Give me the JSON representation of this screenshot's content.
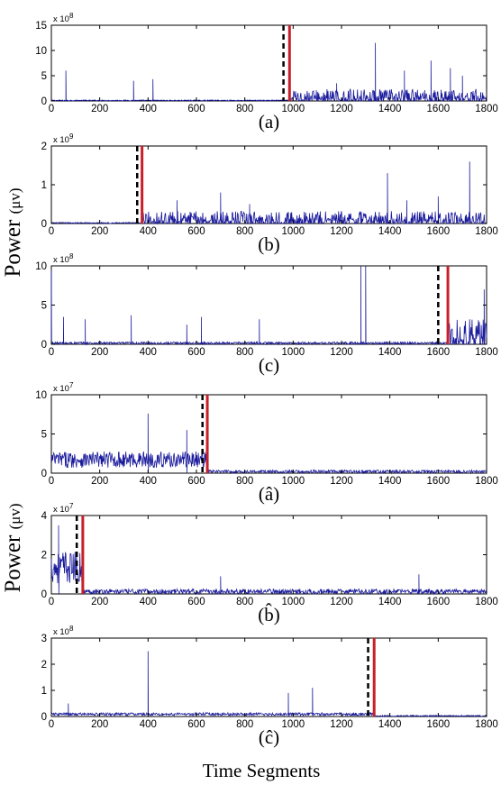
{
  "y_axis_label": "Power",
  "y_axis_unit": "(μv)",
  "x_axis_label": "Time Segments",
  "colors": {
    "signal": "#1a1a9c",
    "dashed": "#000000",
    "red": "#c8202a",
    "axis": "#000000",
    "background": "#ffffff"
  },
  "chart_data": [
    {
      "type": "line",
      "caption": "(a)",
      "exponent_label": "x 10",
      "exponent": "8",
      "xlim": [
        0,
        1800
      ],
      "ylim": [
        0,
        15
      ],
      "x_ticks": [
        0,
        200,
        400,
        600,
        800,
        1000,
        1200,
        1400,
        1600,
        1800
      ],
      "y_ticks": [
        0,
        5,
        10,
        15
      ],
      "dashed_line_x": 960,
      "red_line_x": 985,
      "baseline_level": 0.2,
      "noise_after_red": 1.5,
      "spikes": [
        [
          60,
          6
        ],
        [
          340,
          4
        ],
        [
          420,
          4.3
        ],
        [
          1180,
          3.5
        ],
        [
          1340,
          11.5
        ],
        [
          1460,
          6
        ],
        [
          1570,
          8
        ],
        [
          1650,
          6.5
        ],
        [
          1700,
          5
        ]
      ]
    },
    {
      "type": "line",
      "caption": "(b)",
      "exponent_label": "x 10",
      "exponent": "9",
      "xlim": [
        0,
        1800
      ],
      "ylim": [
        0,
        2
      ],
      "x_ticks": [
        0,
        200,
        400,
        600,
        800,
        1000,
        1200,
        1400,
        1600,
        1800
      ],
      "y_ticks": [
        0,
        1,
        2
      ],
      "dashed_line_x": 355,
      "red_line_x": 375,
      "baseline_level": 0.03,
      "noise_after_red": 0.2,
      "spikes": [
        [
          520,
          0.6
        ],
        [
          700,
          0.8
        ],
        [
          820,
          0.5
        ],
        [
          1390,
          1.3
        ],
        [
          1470,
          0.6
        ],
        [
          1730,
          1.6
        ],
        [
          1600,
          0.7
        ]
      ]
    },
    {
      "type": "line",
      "caption": "(c)",
      "exponent_label": "x 10",
      "exponent": "8",
      "xlim": [
        0,
        1800
      ],
      "ylim": [
        0,
        10
      ],
      "x_ticks": [
        0,
        200,
        400,
        600,
        800,
        1000,
        1200,
        1400,
        1600,
        1800
      ],
      "y_ticks": [
        0,
        5,
        10
      ],
      "dashed_line_x": 1600,
      "red_line_x": 1640,
      "baseline_level": 0.3,
      "noise_after_red": 2.0,
      "spikes": [
        [
          0,
          10
        ],
        [
          50,
          3.5
        ],
        [
          140,
          3.2
        ],
        [
          330,
          3.7
        ],
        [
          560,
          2.5
        ],
        [
          620,
          3.5
        ],
        [
          860,
          3.2
        ],
        [
          1280,
          10
        ],
        [
          1300,
          10
        ],
        [
          1790,
          7
        ]
      ]
    },
    {
      "type": "line",
      "caption": "(â)",
      "exponent_label": "x 10",
      "exponent": "7",
      "xlim": [
        0,
        1800
      ],
      "ylim": [
        0,
        10
      ],
      "x_ticks": [
        0,
        200,
        400,
        600,
        800,
        1000,
        1200,
        1400,
        1600,
        1800
      ],
      "y_ticks": [
        0,
        5,
        10
      ],
      "dashed_line_x": 625,
      "red_line_x": 645,
      "baseline_level": 0.4,
      "noise_before_red": 2.3,
      "spikes": [
        [
          400,
          7.6
        ],
        [
          560,
          5.5
        ]
      ]
    },
    {
      "type": "line",
      "caption": "(b̂)",
      "exponent_label": "x 10",
      "exponent": "7",
      "xlim": [
        0,
        1800
      ],
      "ylim": [
        0,
        4
      ],
      "x_ticks": [
        0,
        200,
        400,
        600,
        800,
        1000,
        1200,
        1400,
        1600,
        1800
      ],
      "y_ticks": [
        0,
        2,
        4
      ],
      "dashed_line_x": 105,
      "red_line_x": 130,
      "baseline_level": 0.25,
      "noise_before_red": 1.8,
      "spikes": [
        [
          30,
          3.5
        ],
        [
          700,
          0.9
        ],
        [
          1520,
          1.0
        ]
      ]
    },
    {
      "type": "line",
      "caption": "(ĉ)",
      "exponent_label": "x 10",
      "exponent": "8",
      "xlim": [
        0,
        1800
      ],
      "ylim": [
        0,
        3
      ],
      "x_ticks": [
        0,
        200,
        400,
        600,
        800,
        1000,
        1200,
        1400,
        1600,
        1800
      ],
      "y_ticks": [
        0,
        1,
        2,
        3
      ],
      "dashed_line_x": 1310,
      "red_line_x": 1335,
      "baseline_level": 0.05,
      "noise_before_red": 0.12,
      "spikes": [
        [
          400,
          2.5
        ],
        [
          980,
          0.9
        ],
        [
          1080,
          1.1
        ],
        [
          70,
          0.5
        ]
      ]
    }
  ]
}
